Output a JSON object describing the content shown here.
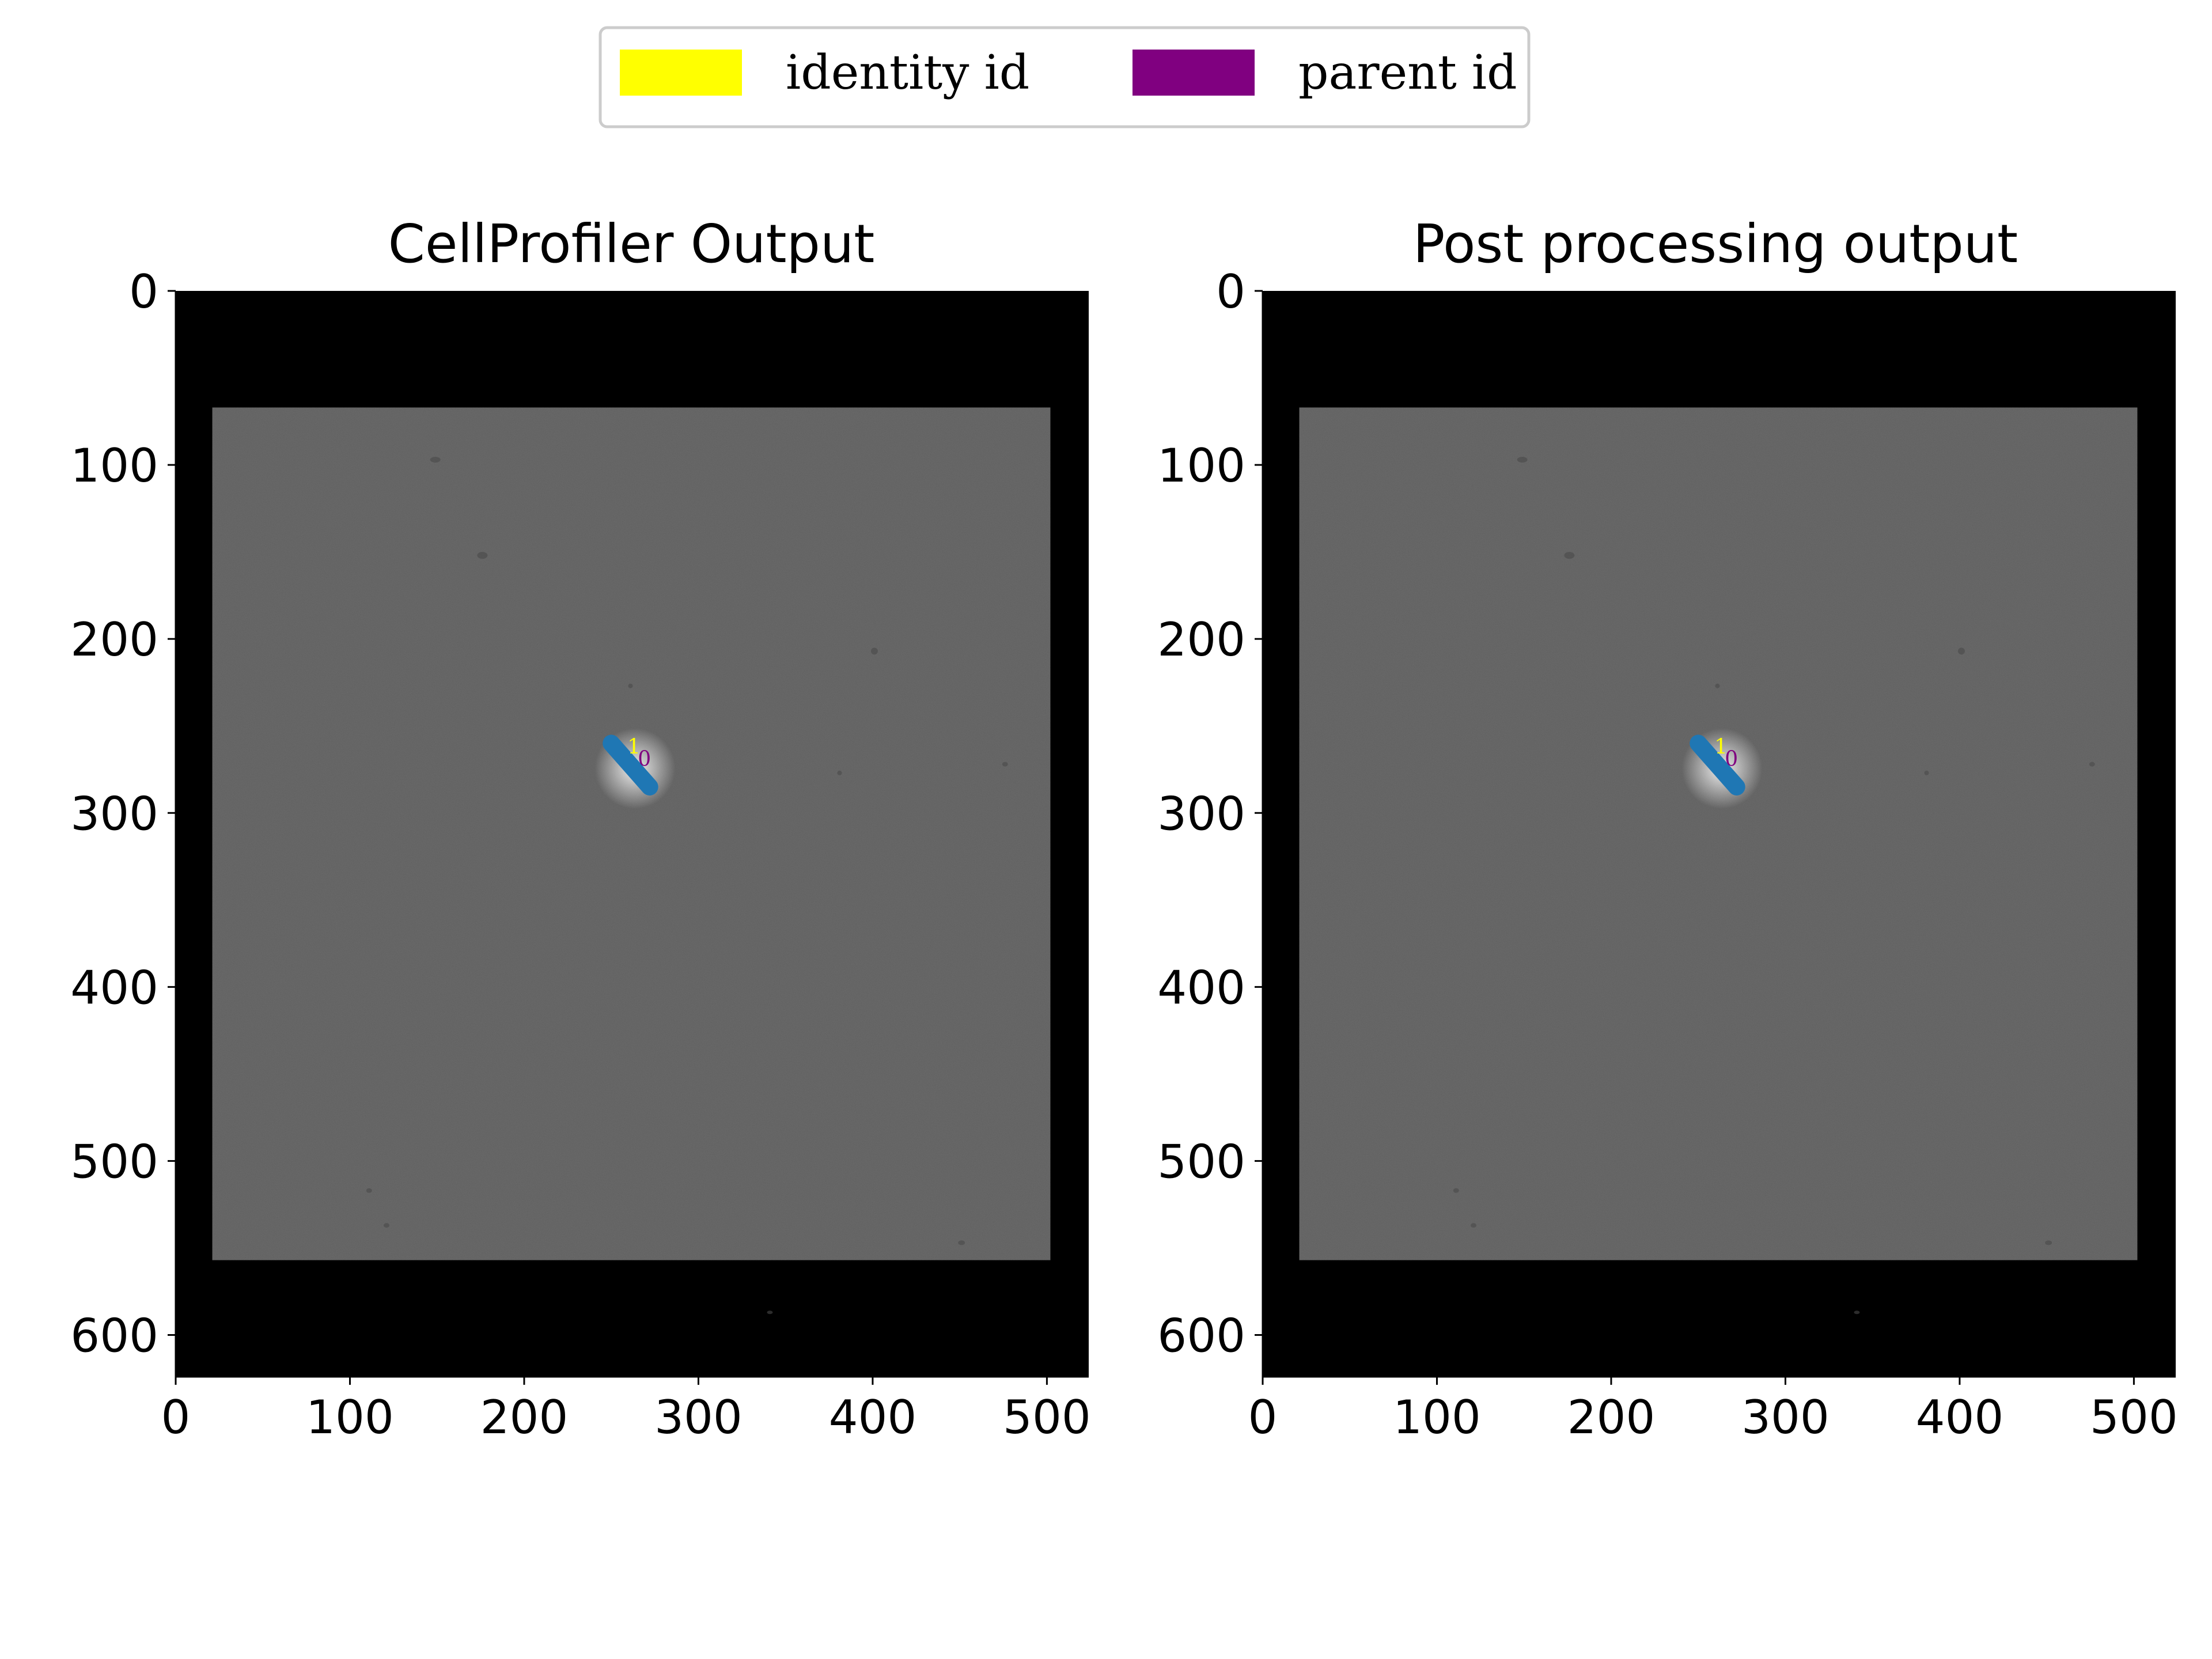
{
  "legend": {
    "items": [
      {
        "label": "identity id",
        "color": "#ffff00"
      },
      {
        "label": "parent id",
        "color": "#800080"
      }
    ]
  },
  "panels": [
    {
      "title": "CellProfiler Output",
      "x_ticks": [
        "0",
        "100",
        "200",
        "300",
        "400",
        "500"
      ],
      "y_ticks": [
        "0",
        "100",
        "200",
        "300",
        "400",
        "500",
        "600"
      ],
      "cell": {
        "x1": 250,
        "y1": 260,
        "x2": 272,
        "y2": 285,
        "color": "#1f77b4"
      },
      "identity_label": {
        "text": "1",
        "x": 263,
        "y": 266
      },
      "parent_label": {
        "text": "0",
        "x": 269,
        "y": 273
      }
    },
    {
      "title": "Post processing output",
      "x_ticks": [
        "0",
        "100",
        "200",
        "300",
        "400",
        "500"
      ],
      "y_ticks": [
        "0",
        "100",
        "200",
        "300",
        "400",
        "500",
        "600"
      ],
      "cell": {
        "x1": 250,
        "y1": 260,
        "x2": 272,
        "y2": 285,
        "color": "#1f77b4"
      },
      "identity_label": {
        "text": "1",
        "x": 263,
        "y": 266
      },
      "parent_label": {
        "text": "0",
        "x": 269,
        "y": 273
      }
    }
  ],
  "image": {
    "extent_x": [
      0,
      524
    ],
    "extent_y": [
      0,
      624
    ],
    "content_x": [
      21,
      502
    ],
    "content_y": [
      67,
      557
    ],
    "border_color": "#000000",
    "field_color": "#5e5e5e"
  }
}
